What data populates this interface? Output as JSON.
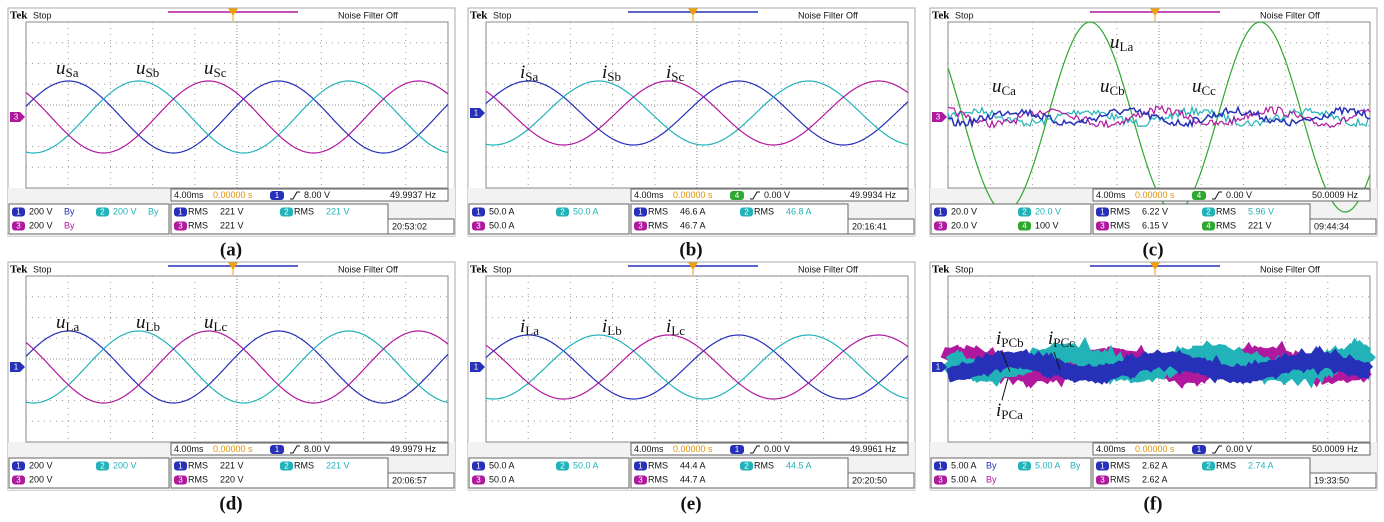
{
  "panels": [
    {
      "header": {
        "brand": "Tek",
        "state": "Stop",
        "filter": "Noise Filter Off"
      },
      "marker": "3",
      "labels": [
        {
          "symbol": "u",
          "sub": "Sa"
        },
        {
          "symbol": "u",
          "sub": "Sb"
        },
        {
          "symbol": "u",
          "sub": "Sc"
        }
      ],
      "readout": {
        "timebase": "4.00ms",
        "position": "0.00000 s",
        "trigger_channel": "1",
        "trigger_level": "8.00 V",
        "frequency": "49.9937 Hz"
      },
      "channels": [
        {
          "id": "1",
          "scale": "200 V",
          "bw": "By"
        },
        {
          "id": "2",
          "scale": "200 V",
          "bw": "By"
        },
        {
          "id": "3",
          "scale": "200 V",
          "bw": "By"
        }
      ],
      "measurements": [
        {
          "channel": "1",
          "type": "RMS",
          "value": "221 V"
        },
        {
          "channel": "2",
          "type": "RMS",
          "value": "221 V"
        },
        {
          "channel": "3",
          "type": "RMS",
          "value": "221 V"
        }
      ],
      "clock": "20:53:02",
      "caption": "(a)"
    },
    {
      "header": {
        "brand": "Tek",
        "state": "Stop",
        "filter": "Noise Filter Off"
      },
      "marker": "1",
      "labels": [
        {
          "symbol": "i",
          "sub": "Sa"
        },
        {
          "symbol": "i",
          "sub": "Sb"
        },
        {
          "symbol": "i",
          "sub": "Sc"
        }
      ],
      "readout": {
        "timebase": "4.00ms",
        "position": "0.00000 s",
        "trigger_channel": "4",
        "trigger_level": "0.00 V",
        "frequency": "49.9934 Hz"
      },
      "channels": [
        {
          "id": "1",
          "scale": "50.0 A"
        },
        {
          "id": "2",
          "scale": "50.0 A"
        },
        {
          "id": "3",
          "scale": "50.0 A"
        }
      ],
      "measurements": [
        {
          "channel": "1",
          "type": "RMS",
          "value": "46.6 A"
        },
        {
          "channel": "2",
          "type": "RMS",
          "value": "46.8 A"
        },
        {
          "channel": "3",
          "type": "RMS",
          "value": "46.7 A"
        }
      ],
      "clock": "20:16:41",
      "caption": "(b)"
    },
    {
      "header": {
        "brand": "Tek",
        "state": "Stop",
        "filter": "Noise Filter Off"
      },
      "marker": "3",
      "labels": [
        {
          "symbol": "u",
          "sub": "La"
        },
        {
          "symbol": "u",
          "sub": "Ca"
        },
        {
          "symbol": "u",
          "sub": "Cb"
        },
        {
          "symbol": "u",
          "sub": "Cc"
        }
      ],
      "readout": {
        "timebase": "4.00ms",
        "position": "0.00000 s",
        "trigger_channel": "4",
        "trigger_level": "0.00 V",
        "frequency": "50.0009 Hz"
      },
      "channels": [
        {
          "id": "1",
          "scale": "20.0 V"
        },
        {
          "id": "2",
          "scale": "20.0 V"
        },
        {
          "id": "3",
          "scale": "20.0 V"
        },
        {
          "id": "4",
          "scale": "100 V"
        }
      ],
      "measurements": [
        {
          "channel": "1",
          "type": "RMS",
          "value": "6.22 V"
        },
        {
          "channel": "2",
          "type": "RMS",
          "value": "5.96 V"
        },
        {
          "channel": "3",
          "type": "RMS",
          "value": "6.15 V"
        },
        {
          "channel": "4",
          "type": "RMS",
          "value": "221 V"
        }
      ],
      "clock": "09:44:34",
      "caption": "(c)"
    },
    {
      "header": {
        "brand": "Tek",
        "state": "Stop",
        "filter": "Noise Filter Off"
      },
      "marker": "1",
      "labels": [
        {
          "symbol": "u",
          "sub": "La"
        },
        {
          "symbol": "u",
          "sub": "Lb"
        },
        {
          "symbol": "u",
          "sub": "Lc"
        }
      ],
      "readout": {
        "timebase": "4.00ms",
        "position": "0.00000 s",
        "trigger_channel": "1",
        "trigger_level": "8.00 V",
        "frequency": "49.9979 Hz"
      },
      "channels": [
        {
          "id": "1",
          "scale": "200 V"
        },
        {
          "id": "2",
          "scale": "200 V"
        },
        {
          "id": "3",
          "scale": "200 V"
        }
      ],
      "measurements": [
        {
          "channel": "1",
          "type": "RMS",
          "value": "221 V"
        },
        {
          "channel": "2",
          "type": "RMS",
          "value": "221 V"
        },
        {
          "channel": "3",
          "type": "RMS",
          "value": "220 V"
        }
      ],
      "clock": "20:06:57",
      "caption": "(d)"
    },
    {
      "header": {
        "brand": "Tek",
        "state": "Stop",
        "filter": "Noise Filter Off"
      },
      "marker": "1",
      "labels": [
        {
          "symbol": "i",
          "sub": "La"
        },
        {
          "symbol": "i",
          "sub": "Lb"
        },
        {
          "symbol": "i",
          "sub": "Lc"
        }
      ],
      "readout": {
        "timebase": "4.00ms",
        "position": "0.00000 s",
        "trigger_channel": "1",
        "trigger_level": "0.00 V",
        "frequency": "49.9961 Hz"
      },
      "channels": [
        {
          "id": "1",
          "scale": "50.0 A"
        },
        {
          "id": "2",
          "scale": "50.0 A"
        },
        {
          "id": "3",
          "scale": "50.0 A"
        }
      ],
      "measurements": [
        {
          "channel": "1",
          "type": "RMS",
          "value": "44.4 A"
        },
        {
          "channel": "2",
          "type": "RMS",
          "value": "44.5 A"
        },
        {
          "channel": "3",
          "type": "RMS",
          "value": "44.7 A"
        }
      ],
      "clock": "20:20:50",
      "caption": "(e)"
    },
    {
      "header": {
        "brand": "Tek",
        "state": "Stop",
        "filter": "Noise Filter Off"
      },
      "marker": "1",
      "labels": [
        {
          "symbol": "i",
          "sub": "PCb"
        },
        {
          "symbol": "i",
          "sub": "PCc"
        },
        {
          "symbol": "i",
          "sub": "PCa"
        }
      ],
      "readout": {
        "timebase": "4.00ms",
        "position": "0.00000 s",
        "trigger_channel": "1",
        "trigger_level": "0.00 V",
        "frequency": "50.0009 Hz"
      },
      "channels": [
        {
          "id": "1",
          "scale": "5.00 A",
          "bw": "By"
        },
        {
          "id": "2",
          "scale": "5.00 A",
          "bw": "By"
        },
        {
          "id": "3",
          "scale": "5.00 A",
          "bw": "By"
        }
      ],
      "measurements": [
        {
          "channel": "1",
          "type": "RMS",
          "value": "2.62 A"
        },
        {
          "channel": "2",
          "type": "RMS",
          "value": "2.74 A"
        },
        {
          "channel": "3",
          "type": "RMS",
          "value": "2.62 A"
        }
      ],
      "clock": "19:33:50",
      "caption": "(f)"
    }
  ]
}
